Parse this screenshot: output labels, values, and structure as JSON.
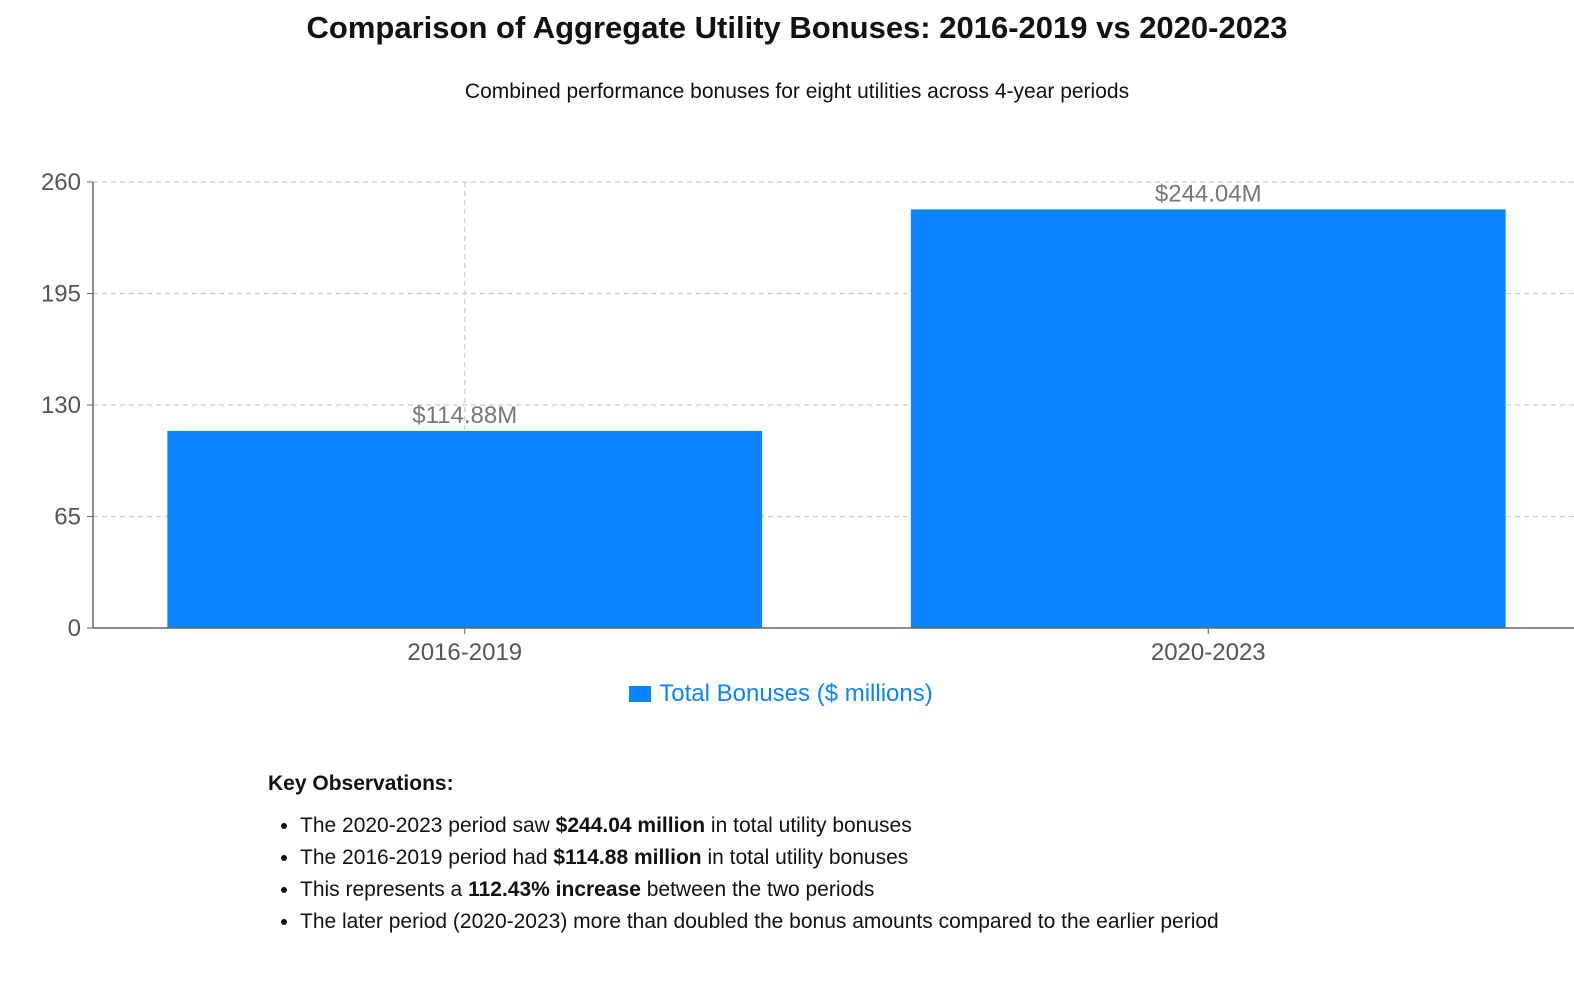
{
  "title": "Comparison of Aggregate Utility Bonuses: 2016-2019 vs 2020-2023",
  "subtitle": "Combined performance bonuses for eight utilities across 4-year periods",
  "colors": {
    "bar": "#0a84ff",
    "grid": "#cccccc",
    "axis": "#666666",
    "tick_text": "#555555",
    "label_text": "#777777"
  },
  "chart_data": {
    "type": "bar",
    "categories": [
      "2016-2019",
      "2020-2023"
    ],
    "series": [
      {
        "name": "Total Bonuses ($ millions)",
        "values": [
          114.88,
          244.04
        ]
      }
    ],
    "data_labels": [
      "$114.88M",
      "$244.04M"
    ],
    "ylim": [
      0,
      260
    ],
    "yticks": [
      0,
      65,
      130,
      195,
      260
    ],
    "grid": true,
    "legend": "bottom-center"
  },
  "legend": {
    "label": "Total Bonuses ($ millions)"
  },
  "observations": {
    "heading": "Key Observations:",
    "items": [
      {
        "pre": "The 2020-2023 period saw ",
        "bold": "$244.04 million",
        "post": " in total utility bonuses"
      },
      {
        "pre": "The 2016-2019 period had ",
        "bold": "$114.88 million",
        "post": " in total utility bonuses"
      },
      {
        "pre": "This represents a ",
        "bold": "112.43% increase",
        "post": " between the two periods"
      },
      {
        "pre": "The later period (2020-2023) more than doubled the bonus amounts compared to the earlier period",
        "bold": "",
        "post": ""
      }
    ]
  }
}
